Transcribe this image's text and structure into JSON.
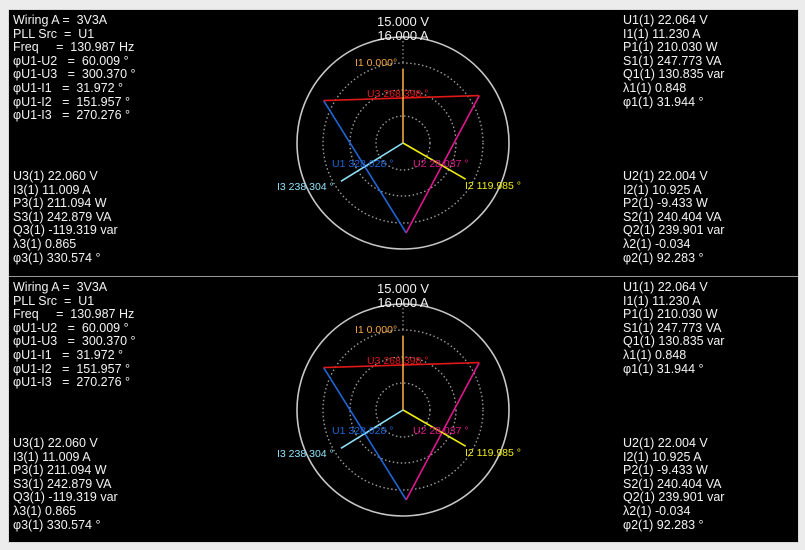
{
  "colors": {
    "I1": "#f4a742",
    "I2": "#f0ec10",
    "I3": "#8ee0f8",
    "U1": "#1f66d6",
    "U2": "#e0168e",
    "U3": "#e01818",
    "grid": "#9a9a9a",
    "ring": "#c8c8c8",
    "background": "#000000"
  },
  "panels": [
    {
      "left_top": [
        "Wiring A =  3V3A",
        "PLL Src  =  U1",
        "Freq     =  130.987 Hz",
        "φU1-U2   =  60.009 °",
        "φU1-U3   =  300.370 °",
        "φU1-I1   =  31.972 °",
        "φU1-I2   =  151.957 °",
        "φU1-I3   =  270.276 °"
      ],
      "left_bottom": [
        "U3(1) 22.060 V",
        "I3(1) 11.009 A",
        "P3(1) 211.094 W",
        "S3(1) 242.879 VA",
        "Q3(1) -119.319 var",
        "λ3(1) 0.865",
        "φ3(1) 330.574 °"
      ],
      "right_top": [
        "U1(1) 22.064 V",
        "I1(1) 11.230 A",
        "P1(1) 210.030 W",
        "S1(1) 247.773 VA",
        "Q1(1) 130.835 var",
        "λ1(1) 0.848",
        "φ1(1) 31.944 °"
      ],
      "right_bottom": [
        "U2(1) 22.004 V",
        "I2(1) 10.925 A",
        "P2(1) -9.433 W",
        "S2(1) 240.404 VA",
        "Q2(1) 239.901 var",
        "λ2(1) -0.034",
        "φ2(1) 92.283 °"
      ],
      "scale_v": "15.000 V",
      "scale_a": "16.000 A",
      "vector_labels": {
        "I1": "I1 0.000°",
        "I2": "I2 119.985 °",
        "I3": "I3 238.304 °",
        "U1": "U1 328.028 °",
        "U2": "U2 28.037 °",
        "U3": "U3 268.398 °"
      }
    },
    {
      "left_top": [
        "Wiring A =  3V3A",
        "PLL Src  =  U1",
        "Freq     =  130.987 Hz",
        "φU1-U2   =  60.009 °",
        "φU1-U3   =  300.370 °",
        "φU1-I1   =  31.972 °",
        "φU1-I2   =  151.957 °",
        "φU1-I3   =  270.276 °"
      ],
      "left_bottom": [
        "U3(1) 22.060 V",
        "I3(1) 11.009 A",
        "P3(1) 211.094 W",
        "S3(1) 242.879 VA",
        "Q3(1) -119.319 var",
        "λ3(1) 0.865",
        "φ3(1) 330.574 °"
      ],
      "right_top": [
        "U1(1) 22.064 V",
        "I1(1) 11.230 A",
        "P1(1) 210.030 W",
        "S1(1) 247.773 VA",
        "Q1(1) 130.835 var",
        "λ1(1) 0.848",
        "φ1(1) 31.944 °"
      ],
      "right_bottom": [
        "U2(1) 22.004 V",
        "I2(1) 10.925 A",
        "P2(1) -9.433 W",
        "S2(1) 240.404 VA",
        "Q2(1) 239.901 var",
        "λ2(1) -0.034",
        "φ2(1) 92.283 °"
      ],
      "scale_v": "15.000 V",
      "scale_a": "16.000 A",
      "vector_labels": {
        "I1": "I1 0.000°",
        "I2": "I2 119.985 °",
        "I3": "I3 238.304 °",
        "U1": "U1 328.028 °",
        "U2": "U2 28.037 °",
        "U3": "U3 268.398 °"
      }
    }
  ],
  "chart_data": {
    "type": "polar-vector",
    "scale_full_v": 15.0,
    "scale_full_a": 16.0,
    "voltages": [
      {
        "name": "U1",
        "magnitude": 22.064,
        "angle": 328.028
      },
      {
        "name": "U2",
        "magnitude": 22.004,
        "angle": 28.037
      },
      {
        "name": "U3",
        "magnitude": 22.06,
        "angle": 268.398
      }
    ],
    "currents": [
      {
        "name": "I1",
        "magnitude": 11.23,
        "angle": 0.0
      },
      {
        "name": "I2",
        "magnitude": 10.925,
        "angle": 119.985
      },
      {
        "name": "I3",
        "magnitude": 11.009,
        "angle": 238.304
      }
    ],
    "angle_direction": "clockwise-from-top",
    "grid": true
  }
}
